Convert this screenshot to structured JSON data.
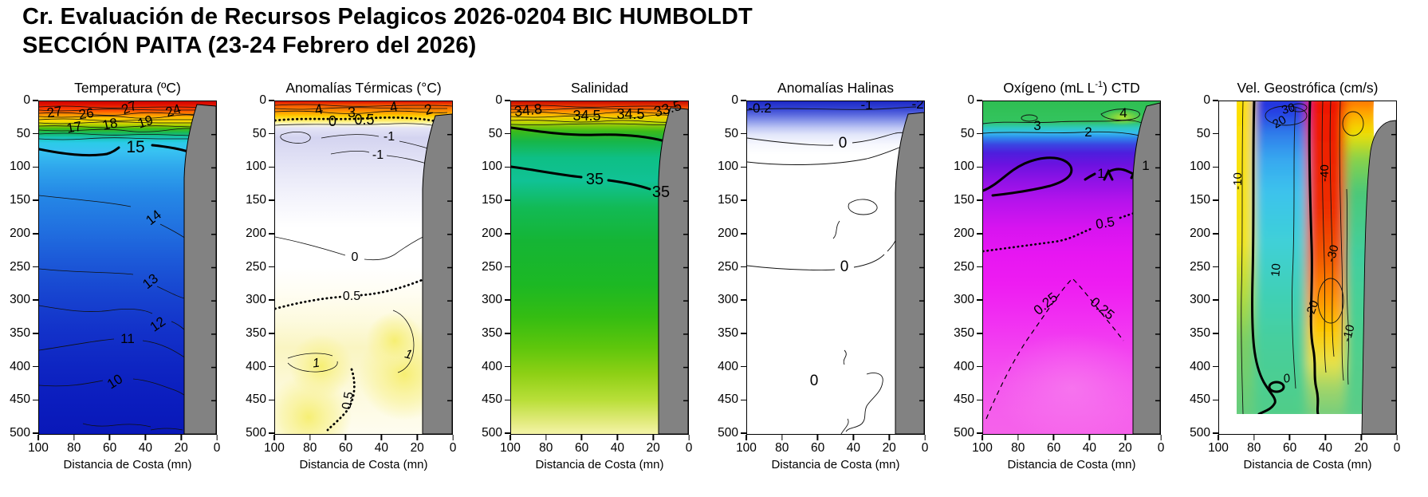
{
  "page_title": {
    "line1": "Cr. Evaluación de Recursos Pelagicos 2026-0204 BIC HUMBOLDT",
    "line2": "SECCIÓN PAITA (23-24 Febrero del 2026)"
  },
  "axes": {
    "xlabel": "Distancia de Costa (mn)",
    "x_ticks": [
      "100",
      "80",
      "60",
      "40",
      "20",
      "0"
    ],
    "y_ticks": [
      "0",
      "50",
      "100",
      "150",
      "200",
      "250",
      "300",
      "350",
      "400",
      "450",
      "500"
    ]
  },
  "colors": {
    "land": "#828282",
    "frame": "#000000",
    "contour": "#111111"
  },
  "panels": {
    "p1": {
      "title_pre": "Temperatura (ºC)",
      "title_sup": "",
      "title_post": "",
      "labels": [
        "27",
        "26",
        "27",
        "24",
        "17",
        "18",
        "19",
        "15",
        "14",
        "13",
        "12",
        "11",
        "10"
      ]
    },
    "p2": {
      "title_pre": "Anomalías Térmicas (°C)",
      "title_sup": "",
      "title_post": "",
      "labels": [
        "4",
        "3",
        "4",
        "2",
        "0",
        "0.5",
        "-1",
        "-1",
        "0",
        "0.5",
        "1",
        "1",
        "0.5"
      ]
    },
    "p3": {
      "title_pre": "Salinidad",
      "title_sup": "",
      "title_post": "",
      "labels": [
        "34.8",
        "34.5",
        "34.5",
        "33.5",
        "35",
        "35"
      ]
    },
    "p4": {
      "title_pre": "Anomalías Halinas",
      "title_sup": "",
      "title_post": "",
      "labels": [
        "-0.2",
        "-1",
        "-2",
        "0",
        "0",
        "0"
      ]
    },
    "p5": {
      "title_pre": "Oxígeno (mL L",
      "title_sup": "-1",
      "title_post": ") CTD",
      "labels": [
        "3",
        "2",
        "4",
        "1",
        "1",
        "0.5",
        "0.25",
        "0.25"
      ]
    },
    "p6": {
      "title_pre": "Vel. Geostrófica (cm/s)",
      "title_sup": "",
      "title_post": "",
      "labels": [
        "30",
        "20",
        "10",
        "-10",
        "-40",
        "-30",
        "-20",
        "-10",
        "0"
      ]
    }
  },
  "chart_data": [
    {
      "type": "contour_section",
      "title": "Temperatura (ºC)",
      "xlabel": "Distancia de Costa (mn)",
      "x_range": [
        100,
        0
      ],
      "x_unit": "mn",
      "depth_range": [
        0,
        500
      ],
      "depth_unit": "m",
      "labeled_contours": [
        27,
        26,
        24,
        19,
        18,
        17,
        15,
        14,
        13,
        12,
        11,
        10
      ],
      "bold_contour": 15,
      "surface_values": "24–27 °C en 0–15 m",
      "thermocline": "15 °C a ~55–70 m",
      "deep_values": "10–14 °C entre 150 y 500 m",
      "palette": "rojo superficial → amarillo/verde/cian en termoclina → azul profundo",
      "land_mask": "costa (0–20 mn) en gris"
    },
    {
      "type": "contour_section",
      "title": "Anomalías Térmicas (°C)",
      "x_range": [
        100,
        0
      ],
      "depth_range": [
        0,
        500
      ],
      "labeled_contours": [
        4,
        3,
        2,
        1,
        0.5,
        0,
        -1
      ],
      "dotted_contours": [
        0,
        0.5
      ],
      "surface_anomaly": "+2 a +4 °C (0–25 m)",
      "subsurface_anomaly": "-1 °C (40–100 m)",
      "deep_anomaly": "+0.5 a +1 °C (250–500 m)",
      "palette": "rojo/naranja arriba, lavanda -1, blanco neutro, amarillo tenue al fondo"
    },
    {
      "type": "contour_section",
      "title": "Salinidad",
      "x_range": [
        100,
        0
      ],
      "depth_range": [
        0,
        500
      ],
      "labeled_contours": [
        34.8,
        34.5,
        33.5,
        35
      ],
      "bold_contours": [
        34.9,
        35
      ],
      "surface_values": "33.5–34.8 en 0–20 m",
      "body": "≈35 de 50 a 350 m",
      "palette": "banda roja/naranja superficial → verde/teal → amarillo pálido profundo"
    },
    {
      "type": "contour_section",
      "title": "Anomalías Halinas",
      "x_range": [
        100,
        0
      ],
      "depth_range": [
        0,
        500
      ],
      "labeled_contours": [
        -2,
        -1,
        -0.2,
        0
      ],
      "surface_band": "negativa (-0.2 a -2) en 0–30 m, azul",
      "body": "≈0, blanco"
    },
    {
      "type": "contour_section",
      "title": "Oxígeno (mL L-1) CTD",
      "x_range": [
        100,
        0
      ],
      "depth_range": [
        0,
        500
      ],
      "labeled_contours": [
        4,
        3,
        2,
        1,
        0.5,
        0.25
      ],
      "bold_contour": 1,
      "surface_values": "3–4 mL/L en 0–30 m",
      "oxycline": "1 mL/L a ~80–130 m",
      "minimum_zone": "<0.25 mL/L bajo ~270 m",
      "palette": "verde superficial → cian/azul → violeta → magenta profundo"
    },
    {
      "type": "contour_section",
      "title": "Vel. Geostrófica (cm/s)",
      "x_range": [
        100,
        0
      ],
      "depth_range": [
        0,
        470
      ],
      "labeled_contours": [
        30,
        20,
        10,
        0,
        -10,
        -20,
        -30,
        -40
      ],
      "bold_contour": 0,
      "poleward_core": "+30 cm/s (azul) a 60–70 mn en superficie",
      "equatorward_core": "-40 cm/s (rojo) a 30–45 mn entre 0 y 150 m",
      "palette": "azul = flujo positivo, rojo/naranja = negativo, verde al fondo"
    }
  ]
}
